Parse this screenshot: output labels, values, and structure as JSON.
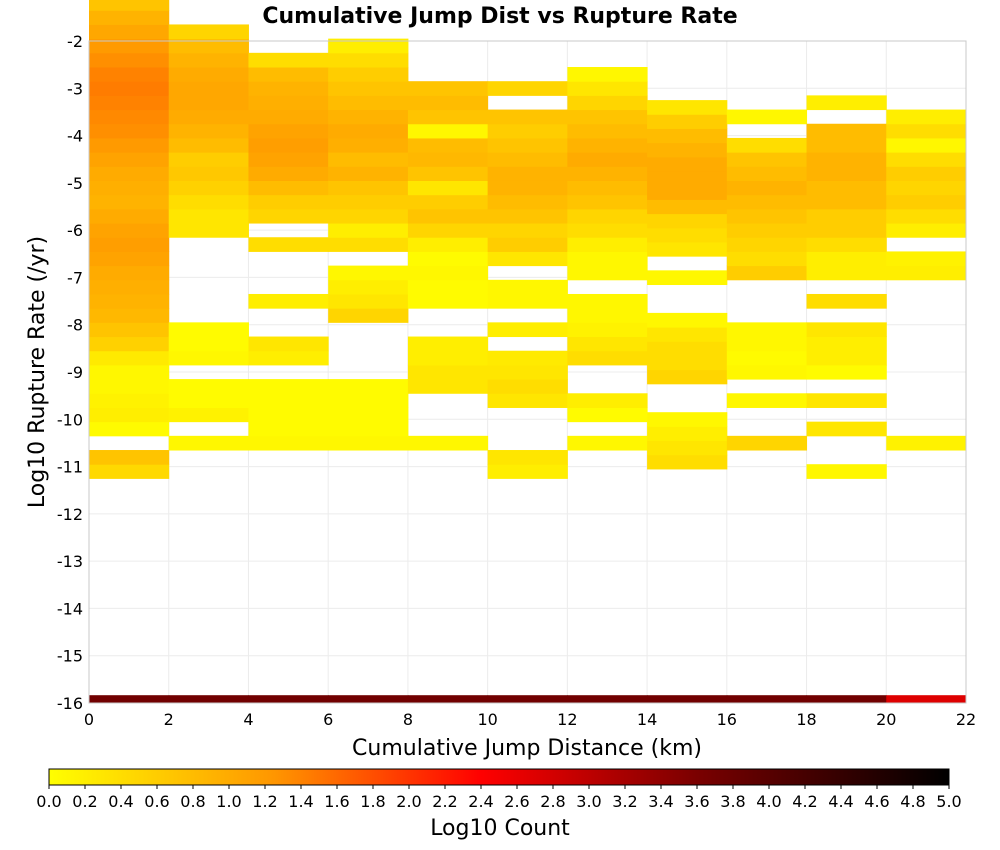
{
  "chart_data": {
    "type": "heatmap",
    "title": "Cumulative Jump Dist vs Rupture Rate",
    "xlabel": "Cumulative Jump Distance (km)",
    "ylabel": "Log10 Rupture Rate (/yr)",
    "xlim": [
      0,
      22
    ],
    "ylim": [
      -16,
      -2
    ],
    "x_ticks": [
      "0",
      "2",
      "4",
      "6",
      "8",
      "10",
      "12",
      "14",
      "16",
      "18",
      "20",
      "22"
    ],
    "y_ticks": [
      "-2",
      "-3",
      "-4",
      "-5",
      "-6",
      "-7",
      "-8",
      "-9",
      "-10",
      "-11",
      "-12",
      "-13",
      "-14",
      "-15",
      "-16"
    ],
    "x_bin_width": 2,
    "y_bin_height": 0.3,
    "grid": true,
    "colorbar": {
      "label": "Log10 Count",
      "min": 0.0,
      "max": 5.0,
      "ticks": [
        "0.0",
        "0.2",
        "0.4",
        "0.6",
        "0.8",
        "1.0",
        "1.2",
        "1.4",
        "1.6",
        "1.8",
        "2.0",
        "2.2",
        "2.4",
        "2.6",
        "2.8",
        "3.0",
        "3.2",
        "3.4",
        "3.6",
        "3.8",
        "4.0",
        "4.2",
        "4.4",
        "4.6",
        "4.8",
        "5.0"
      ],
      "colors": [
        "#ffff00",
        "#ff9600",
        "#ff0000",
        "#7a0000",
        "#000000"
      ],
      "placement": "bottom"
    },
    "columns": [
      {
        "x0": 0,
        "y_start": -11.25,
        "values": [
          0.45,
          0.7,
          0.0,
          0.05,
          0.2,
          0.15,
          0.1,
          0.1,
          0.25,
          0.55,
          0.7,
          0.85,
          0.9,
          0.95,
          1.0,
          1.1,
          1.15,
          1.1,
          1.0,
          0.9,
          0.95,
          1.0,
          1.1,
          1.2,
          1.3,
          1.35,
          1.4,
          1.45,
          1.4,
          1.3,
          1.2,
          1.05,
          0.9,
          0.7,
          0.4
        ],
        "bottom_value": 3.7
      },
      {
        "x0": 2,
        "y_start": -10.65,
        "values": [
          0.1,
          0.0,
          0.15,
          0.05,
          0.05,
          0.0,
          0.1,
          0.05,
          0.05,
          0.0,
          0.0,
          0.0,
          0.0,
          0.0,
          0.0,
          0.3,
          0.3,
          0.4,
          0.55,
          0.65,
          0.6,
          0.8,
          0.9,
          1.0,
          1.05,
          1.05,
          1.0,
          0.9,
          0.8,
          0.5
        ],
        "bottom_value": 3.7
      },
      {
        "x0": 4,
        "y_start": -10.65,
        "values": [
          0.1,
          0.05,
          0.05,
          0.05,
          0.05,
          0.0,
          0.2,
          0.3,
          0.0,
          0.0,
          0.2,
          0.0,
          0.0,
          0.0,
          0.4,
          0.0,
          0.5,
          0.6,
          0.8,
          1.0,
          1.1,
          1.15,
          1.1,
          1.0,
          0.95,
          0.9,
          0.8,
          0.4
        ],
        "bottom_value": 3.7
      },
      {
        "x0": 6,
        "y_start": -10.65,
        "values": [
          0.1,
          0.05,
          0.05,
          0.05,
          0.05,
          0.0,
          0.0,
          0.0,
          0.0,
          0.5,
          0.3,
          0.2,
          0.1,
          0.0,
          0.4,
          0.2,
          0.5,
          0.6,
          0.7,
          0.9,
          0.8,
          0.95,
          1.0,
          0.9,
          0.8,
          0.7,
          0.6,
          0.4,
          0.2
        ],
        "bottom_value": 3.7
      },
      {
        "x0": 8,
        "y_start": -10.65,
        "values": [
          0.1,
          0.0,
          0.0,
          0.0,
          0.3,
          0.3,
          0.2,
          0.2,
          0.0,
          0.0,
          0.05,
          0.05,
          0.1,
          0.05,
          0.2,
          0.5,
          0.7,
          0.6,
          0.3,
          0.7,
          0.85,
          0.8,
          0.1,
          0.7,
          0.8,
          0.7,
          0.0,
          0.0
        ],
        "bottom_value": 3.7
      },
      {
        "x0": 10,
        "y_start": -11.25,
        "values": [
          0.2,
          0.3,
          0.0,
          0.0,
          0.0,
          0.3,
          0.4,
          0.3,
          0.25,
          0.0,
          0.2,
          0.0,
          0.1,
          0.1,
          0.0,
          0.3,
          0.6,
          0.5,
          0.7,
          0.8,
          0.9,
          0.9,
          0.8,
          0.7,
          0.6,
          0.7,
          0.0,
          0.5
        ],
        "bottom_value": 3.7
      },
      {
        "x0": 12,
        "y_start": -10.65,
        "values": [
          0.1,
          0.0,
          0.05,
          0.2,
          0.0,
          0.0,
          0.4,
          0.3,
          0.15,
          0.1,
          0.1,
          0.0,
          0.1,
          0.1,
          0.2,
          0.4,
          0.5,
          0.7,
          0.8,
          0.9,
          1.0,
          0.9,
          0.8,
          0.7,
          0.5,
          0.3,
          0.1
        ],
        "bottom_value": 3.7
      },
      {
        "x0": 14,
        "y_start": -11.05,
        "values": [
          0.4,
          0.3,
          0.2,
          0.1,
          0.0,
          0.0,
          0.5,
          0.4,
          0.4,
          0.3,
          0.1,
          0.0,
          0.0,
          0.1,
          0.0,
          0.3,
          0.4,
          0.5,
          0.8,
          1.0,
          1.0,
          1.0,
          0.9,
          0.8,
          0.6,
          0.3
        ],
        "bottom_value": 3.7
      },
      {
        "x0": 16,
        "y_start": -10.65,
        "values": [
          0.5,
          0.0,
          0.0,
          0.1,
          0.0,
          0.1,
          0.05,
          0.1,
          0.1,
          0.0,
          0.0,
          0.0,
          0.6,
          0.4,
          0.5,
          0.6,
          0.7,
          0.8,
          0.9,
          0.8,
          0.7,
          0.4,
          0.0,
          0.1
        ],
        "bottom_value": 3.7
      },
      {
        "x0": 18,
        "y_start": -11.25,
        "values": [
          0.1,
          0.0,
          0.0,
          0.3,
          0.0,
          0.3,
          0.0,
          0.05,
          0.2,
          0.2,
          0.3,
          0.0,
          0.4,
          0.0,
          0.2,
          0.2,
          0.4,
          0.6,
          0.6,
          0.8,
          0.8,
          0.9,
          0.9,
          0.8,
          0.8,
          0.0,
          0.2
        ],
        "bottom_value": 3.7
      },
      {
        "x0": 20,
        "y_start": -10.65,
        "values": [
          0.15,
          0.0,
          0.0,
          0.0,
          0.0,
          0.0,
          0.0,
          0.0,
          0.0,
          0.0,
          0.0,
          0.0,
          0.2,
          0.15,
          0.0,
          0.2,
          0.4,
          0.6,
          0.5,
          0.6,
          0.4,
          0.1,
          0.4,
          0.2
        ],
        "bottom_value": 2.7
      }
    ]
  }
}
